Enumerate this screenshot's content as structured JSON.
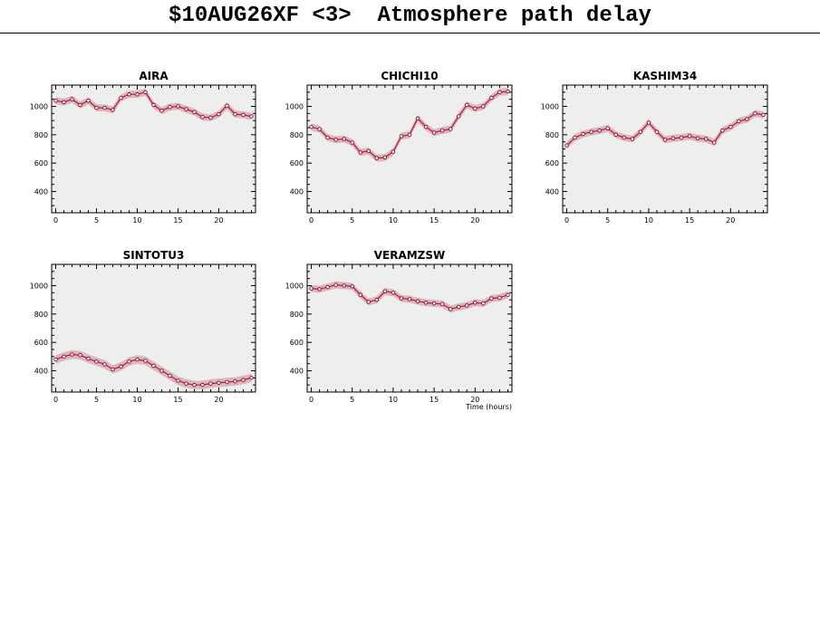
{
  "page": {
    "title": "$10AUG26XF <3>  Atmosphere path delay"
  },
  "chart_data": [
    {
      "type": "line",
      "title": "AIRA",
      "xlabel": "",
      "xlim": [
        -0.5,
        24.5
      ],
      "ylim": [
        250,
        1150
      ],
      "xticks": [
        0,
        5,
        10,
        15,
        20
      ],
      "yticks": [
        400,
        600,
        800,
        1000
      ],
      "x": [
        0,
        1,
        2,
        3,
        4,
        5,
        6,
        7,
        8,
        9,
        10,
        11,
        12,
        13,
        14,
        15,
        16,
        17,
        18,
        19,
        20,
        21,
        22,
        23,
        24
      ],
      "y": [
        1040,
        1030,
        1050,
        1010,
        1040,
        990,
        990,
        975,
        1060,
        1085,
        1085,
        1100,
        1010,
        970,
        995,
        1000,
        980,
        960,
        925,
        920,
        945,
        1005,
        945,
        940,
        930
      ],
      "band": 25,
      "series_color": "#c0103a",
      "band_color": "#d8b8be",
      "bg_color": "#eeeeee"
    },
    {
      "type": "line",
      "title": "CHICHI10",
      "xlabel": "",
      "xlim": [
        -0.5,
        24.5
      ],
      "ylim": [
        250,
        1150
      ],
      "xticks": [
        0,
        5,
        10,
        15,
        20
      ],
      "yticks": [
        400,
        600,
        800,
        1000
      ],
      "x": [
        0,
        1,
        2,
        3,
        4,
        5,
        6,
        7,
        8,
        9,
        10,
        11,
        12,
        13,
        14,
        15,
        16,
        17,
        18,
        19,
        20,
        21,
        22,
        23,
        24
      ],
      "y": [
        855,
        840,
        780,
        765,
        770,
        745,
        675,
        685,
        635,
        640,
        680,
        790,
        800,
        915,
        855,
        815,
        830,
        840,
        930,
        1010,
        985,
        1000,
        1060,
        1100,
        1105
      ],
      "band": 25,
      "series_color": "#c0103a",
      "band_color": "#d8b8be",
      "bg_color": "#eeeeee"
    },
    {
      "type": "line",
      "title": "KASHIM34",
      "xlabel": "",
      "xlim": [
        -0.5,
        24.5
      ],
      "ylim": [
        250,
        1150
      ],
      "xticks": [
        0,
        5,
        10,
        15,
        20
      ],
      "yticks": [
        400,
        600,
        800,
        1000
      ],
      "x": [
        0,
        1,
        2,
        3,
        4,
        5,
        6,
        7,
        8,
        9,
        10,
        11,
        12,
        13,
        14,
        15,
        16,
        17,
        18,
        19,
        20,
        21,
        22,
        23,
        24
      ],
      "y": [
        725,
        780,
        805,
        820,
        830,
        845,
        800,
        780,
        770,
        820,
        885,
        820,
        765,
        775,
        780,
        790,
        775,
        770,
        745,
        830,
        855,
        895,
        910,
        950,
        940
      ],
      "band": 25,
      "series_color": "#c0103a",
      "band_color": "#d8b8be",
      "bg_color": "#eeeeee"
    },
    {
      "type": "line",
      "title": "SINTOTU3",
      "xlabel": "",
      "xlim": [
        -0.5,
        24.5
      ],
      "ylim": [
        250,
        1150
      ],
      "xticks": [
        0,
        5,
        10,
        15,
        20
      ],
      "yticks": [
        400,
        600,
        800,
        1000
      ],
      "x": [
        0,
        1,
        2,
        3,
        4,
        5,
        6,
        7,
        8,
        9,
        10,
        11,
        12,
        13,
        14,
        15,
        16,
        17,
        18,
        19,
        20,
        21,
        22,
        23,
        24
      ],
      "y": [
        480,
        500,
        515,
        510,
        485,
        465,
        445,
        410,
        430,
        465,
        480,
        470,
        435,
        400,
        365,
        330,
        310,
        300,
        300,
        310,
        315,
        320,
        325,
        335,
        350
      ],
      "band": 30,
      "series_color": "#c0103a",
      "band_color": "#d8b8be",
      "bg_color": "#eeeeee"
    },
    {
      "type": "line",
      "title": "VERAMZSW",
      "xlabel": "Time (hours)",
      "xlim": [
        -0.5,
        24.5
      ],
      "ylim": [
        250,
        1150
      ],
      "xticks": [
        0,
        5,
        10,
        15,
        20
      ],
      "yticks": [
        400,
        600,
        800,
        1000
      ],
      "x": [
        0,
        1,
        2,
        3,
        4,
        5,
        6,
        7,
        8,
        9,
        10,
        11,
        12,
        13,
        14,
        15,
        16,
        17,
        18,
        19,
        20,
        21,
        22,
        23,
        24
      ],
      "y": [
        980,
        975,
        990,
        1005,
        1000,
        995,
        935,
        885,
        900,
        960,
        950,
        910,
        905,
        890,
        880,
        875,
        870,
        835,
        850,
        860,
        880,
        875,
        910,
        915,
        935
      ],
      "band": 25,
      "series_color": "#c0103a",
      "band_color": "#d8b8be",
      "bg_color": "#eeeeee"
    }
  ]
}
